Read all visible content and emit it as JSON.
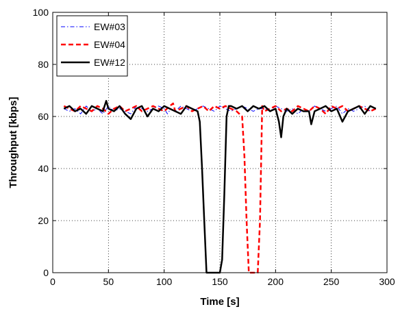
{
  "chart_data": {
    "type": "line",
    "title": "",
    "xlabel": "Time [s]",
    "ylabel": "Throughput [kbps]",
    "xlim": [
      0,
      300
    ],
    "ylim": [
      0,
      100
    ],
    "xticks": [
      0,
      50,
      100,
      150,
      200,
      250,
      300
    ],
    "yticks": [
      0,
      20,
      40,
      60,
      80,
      100
    ],
    "grid": true,
    "legend_position": "top-left",
    "series": [
      {
        "name": "EW#03",
        "color": "#0000ff",
        "line_style": "dash-dot",
        "x": [
          10,
          15,
          20,
          25,
          30,
          35,
          40,
          45,
          50,
          55,
          60,
          65,
          70,
          75,
          80,
          85,
          90,
          95,
          100,
          103,
          106,
          110,
          115,
          120,
          125,
          130,
          135,
          140,
          145,
          150,
          155,
          160,
          165,
          170,
          175,
          180,
          185,
          190,
          195,
          200,
          205,
          210,
          215,
          220,
          225,
          230,
          235,
          240,
          245,
          250,
          255,
          260,
          265,
          270,
          275,
          280,
          285,
          290
        ],
        "y": [
          63,
          62,
          63,
          61,
          64,
          62,
          63,
          61,
          64,
          62,
          63,
          62,
          61,
          64,
          63,
          62,
          63,
          64,
          63,
          61,
          63,
          62,
          64,
          63,
          62,
          63,
          64,
          63,
          62,
          64,
          63,
          62,
          63,
          64,
          63,
          62,
          63,
          63,
          62,
          64,
          63,
          62,
          63,
          61,
          63,
          62,
          64,
          63,
          62,
          63,
          64,
          61,
          63,
          62,
          63,
          64,
          62,
          63
        ]
      },
      {
        "name": "EW#04",
        "color": "#ff0000",
        "line_style": "dashed",
        "x": [
          10,
          15,
          20,
          25,
          30,
          35,
          40,
          45,
          50,
          55,
          60,
          65,
          70,
          75,
          80,
          85,
          90,
          95,
          100,
          105,
          108,
          110,
          115,
          120,
          125,
          130,
          135,
          140,
          145,
          150,
          155,
          160,
          165,
          170,
          172,
          174,
          176,
          178,
          180,
          182,
          184,
          186,
          188,
          190,
          195,
          200,
          205,
          210,
          215,
          220,
          225,
          230,
          235,
          240,
          245,
          250,
          255,
          260,
          265,
          270,
          275,
          280,
          285,
          290
        ],
        "y": [
          64,
          63,
          62,
          64,
          63,
          62,
          64,
          63,
          61,
          63,
          64,
          62,
          63,
          64,
          62,
          63,
          64,
          63,
          62,
          64,
          65,
          62,
          63,
          64,
          62,
          63,
          64,
          62,
          64,
          63,
          64,
          63,
          62,
          60,
          45,
          20,
          0,
          0,
          0,
          0,
          0,
          20,
          64,
          62,
          63,
          64,
          62,
          63,
          62,
          64,
          63,
          62,
          64,
          63,
          61,
          64,
          63,
          64,
          62,
          63,
          64,
          63,
          62,
          63
        ]
      },
      {
        "name": "EW#12",
        "color": "#000000",
        "line_style": "solid",
        "x": [
          10,
          15,
          20,
          25,
          30,
          35,
          40,
          45,
          48,
          50,
          55,
          60,
          65,
          70,
          75,
          80,
          85,
          90,
          95,
          100,
          105,
          110,
          115,
          120,
          125,
          130,
          132,
          134,
          136,
          138,
          140,
          145,
          150,
          152,
          154,
          156,
          158,
          160,
          165,
          170,
          175,
          180,
          185,
          190,
          195,
          200,
          203,
          205,
          207,
          210,
          215,
          220,
          225,
          230,
          232,
          235,
          240,
          245,
          250,
          255,
          260,
          265,
          270,
          275,
          280,
          285,
          290
        ],
        "y": [
          63,
          64,
          62,
          63,
          61,
          64,
          63,
          62,
          66,
          63,
          62,
          64,
          61,
          59,
          63,
          64,
          60,
          63,
          62,
          64,
          63,
          62,
          61,
          64,
          63,
          62,
          58,
          40,
          20,
          0,
          0,
          0,
          0,
          5,
          30,
          60,
          64,
          64,
          63,
          64,
          62,
          64,
          63,
          64,
          62,
          63,
          58,
          52,
          60,
          63,
          61,
          63,
          62,
          62,
          57,
          62,
          63,
          64,
          62,
          63,
          58,
          62,
          63,
          64,
          61,
          64,
          63
        ]
      }
    ]
  }
}
